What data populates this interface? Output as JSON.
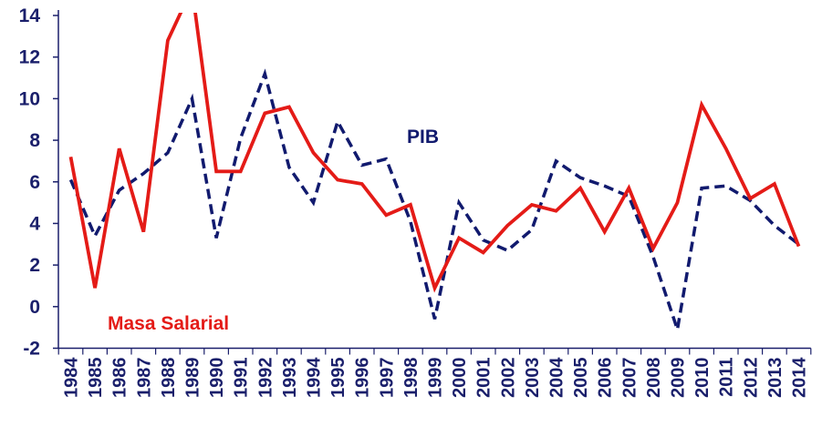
{
  "chart_data": {
    "type": "line",
    "title": "",
    "xlabel": "",
    "ylabel": "",
    "ylim": [
      -2,
      14
    ],
    "yticks": [
      "-2",
      "0",
      "2",
      "4",
      "6",
      "8",
      "10",
      "12",
      "14"
    ],
    "x": [
      "1984",
      "1985",
      "1986",
      "1987",
      "1988",
      "1989",
      "1990",
      "1991",
      "1992",
      "1993",
      "1994",
      "1995",
      "1996",
      "1997",
      "1998",
      "1999",
      "2000",
      "2001",
      "2002",
      "2003",
      "2004",
      "2005",
      "2006",
      "2007",
      "2008",
      "2009",
      "2010",
      "2011",
      "2012",
      "2013",
      "2014"
    ],
    "grid": false,
    "series": [
      {
        "name": "Masa Salarial",
        "color": "#e41b17",
        "style": "solid",
        "values": [
          7.2,
          0.9,
          7.6,
          3.6,
          12.8,
          15.3,
          6.5,
          6.5,
          9.3,
          9.6,
          7.4,
          6.1,
          5.9,
          4.4,
          4.9,
          0.9,
          3.3,
          2.6,
          3.9,
          4.9,
          4.6,
          5.7,
          3.6,
          5.7,
          2.8,
          5.0,
          9.7,
          7.6,
          5.2,
          5.9,
          2.9
        ]
      },
      {
        "name": "PIB",
        "color": "#111a6e",
        "style": "dashed",
        "values": [
          6.1,
          3.4,
          5.6,
          6.4,
          7.4,
          10.0,
          3.3,
          8.1,
          11.2,
          6.7,
          5.0,
          8.9,
          6.8,
          7.1,
          4.1,
          -0.6,
          5.0,
          3.2,
          2.7,
          3.7,
          7.0,
          6.2,
          5.8,
          5.3,
          2.4,
          -1.1,
          5.7,
          5.8,
          5.1,
          3.9,
          3.0
        ]
      }
    ]
  }
}
